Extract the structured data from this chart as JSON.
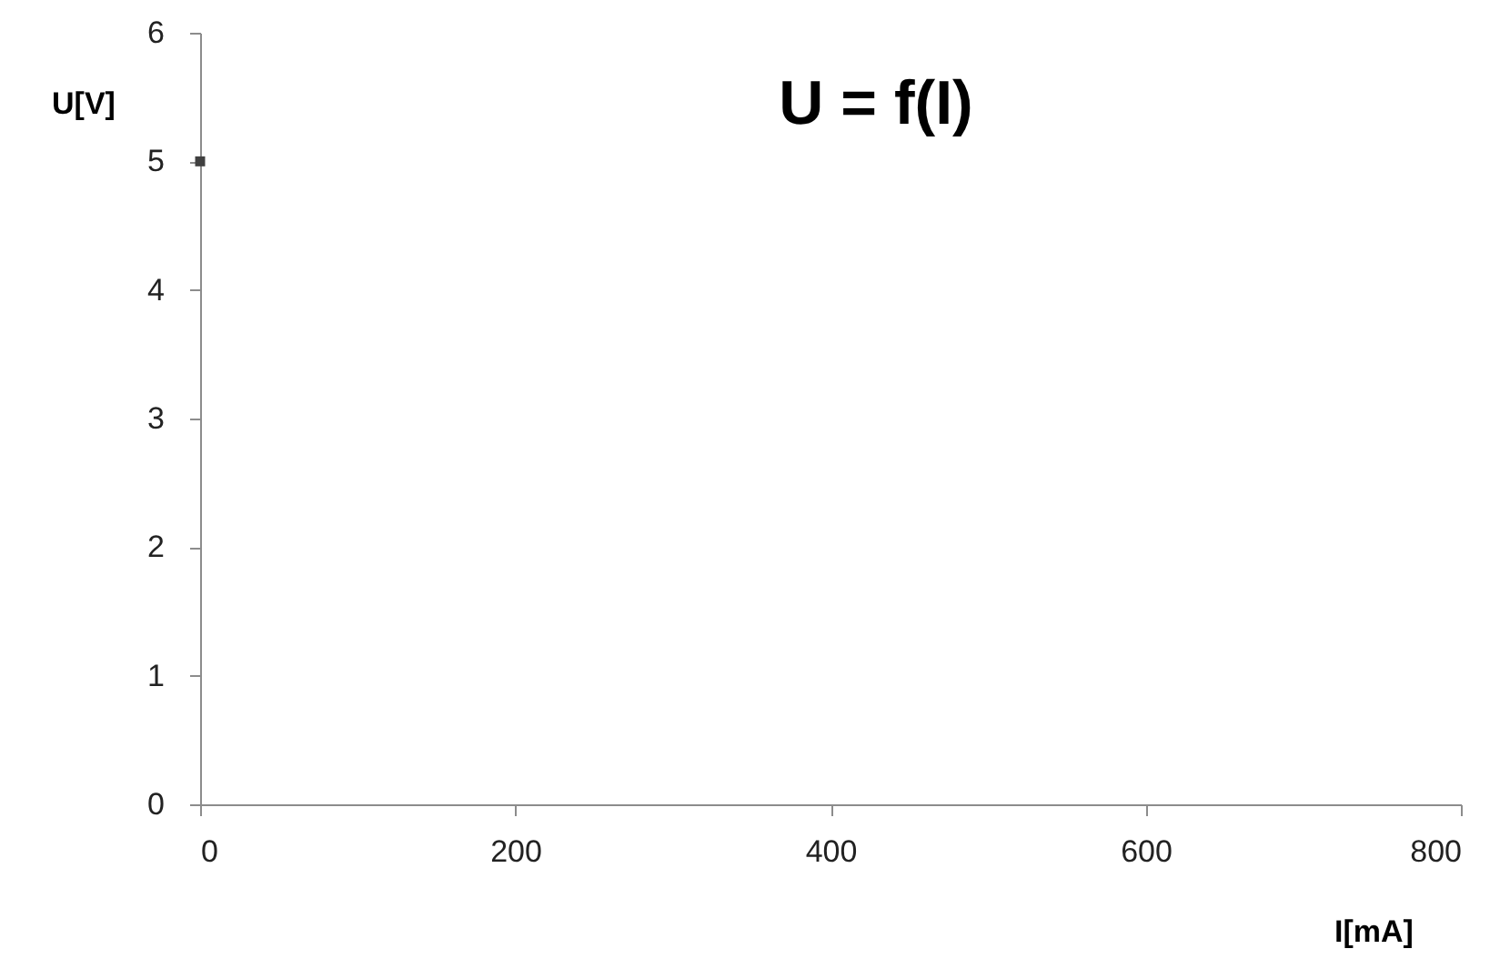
{
  "chart_data": {
    "type": "scatter",
    "title": "U = f(I)",
    "xlabel": "I[mA]",
    "ylabel": "U[V]",
    "x": [
      0
    ],
    "values": [
      5
    ],
    "color": "#404040",
    "marker": "square",
    "xlim": [
      0,
      800
    ],
    "xticks": [
      0,
      200,
      400,
      600,
      800
    ],
    "ylim": [
      0,
      6
    ],
    "yticks": [
      0,
      1,
      2,
      3,
      4,
      5,
      6
    ],
    "grid": false
  }
}
